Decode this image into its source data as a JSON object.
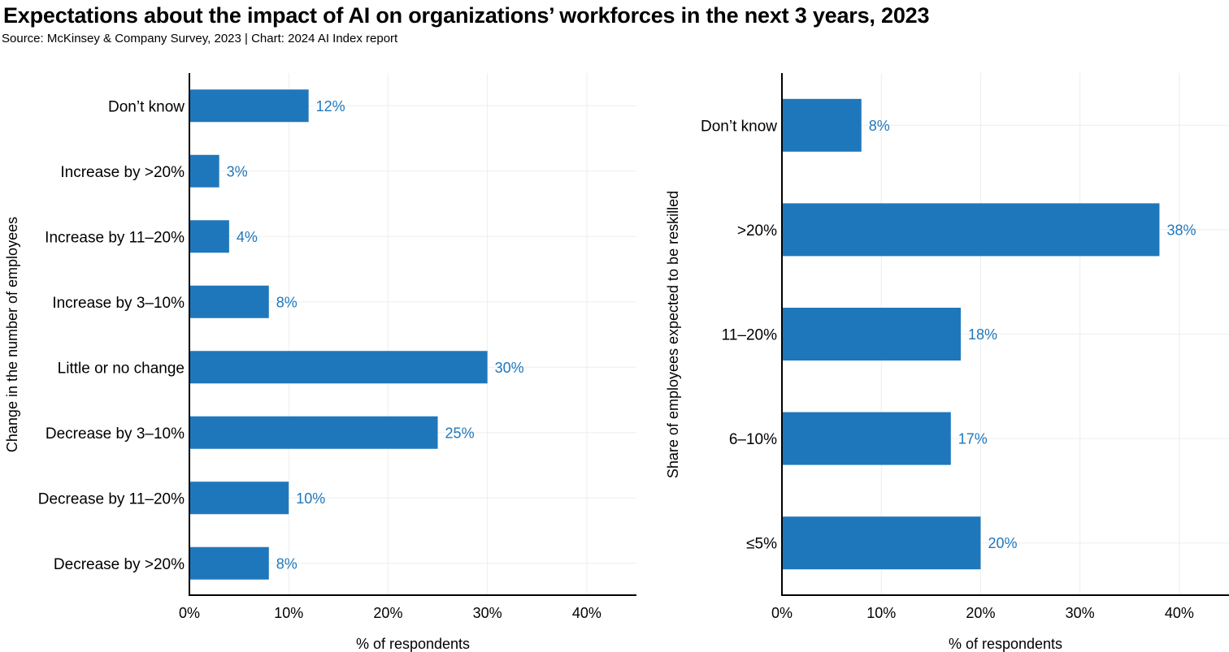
{
  "title": "Expectations about the impact of AI on organizations’ workforces in the next 3 years, 2023",
  "subtitle": "Source: McKinsey & Company Survey, 2023 | Chart: 2024 AI Index report",
  "colors": {
    "bar": "#1f77bb",
    "label": "#1f77bb",
    "axis": "#000000",
    "grid": "#eeeeee"
  },
  "chart_data": [
    {
      "type": "bar",
      "orientation": "horizontal",
      "categories": [
        "Don’t know",
        "Increase by >20%",
        "Increase by 11–20%",
        "Increase by 3–10%",
        "Little or no change",
        "Decrease by 3–10%",
        "Decrease by 11–20%",
        "Decrease by >20%"
      ],
      "values": [
        12,
        3,
        4,
        8,
        30,
        25,
        10,
        8
      ],
      "data_labels": [
        "12%",
        "3%",
        "4%",
        "8%",
        "30%",
        "25%",
        "10%",
        "8%"
      ],
      "xlabel": "% of respondents",
      "ylabel": "Change in the number of employees",
      "xlim": [
        0,
        45
      ],
      "xticks": [
        0,
        10,
        20,
        30,
        40
      ],
      "xtick_labels": [
        "0%",
        "10%",
        "20%",
        "30%",
        "40%"
      ],
      "grid": true
    },
    {
      "type": "bar",
      "orientation": "horizontal",
      "categories": [
        "Don’t know",
        ">20%",
        "11–20%",
        "6–10%",
        "≤5%"
      ],
      "values": [
        8,
        38,
        18,
        17,
        20
      ],
      "data_labels": [
        "8%",
        "38%",
        "18%",
        "17%",
        "20%"
      ],
      "xlabel": "% of respondents",
      "ylabel": "Share of employees expected to be reskilled",
      "xlim": [
        0,
        45
      ],
      "xticks": [
        0,
        10,
        20,
        30,
        40
      ],
      "xtick_labels": [
        "0%",
        "10%",
        "20%",
        "30%",
        "40%"
      ],
      "grid": true
    }
  ]
}
